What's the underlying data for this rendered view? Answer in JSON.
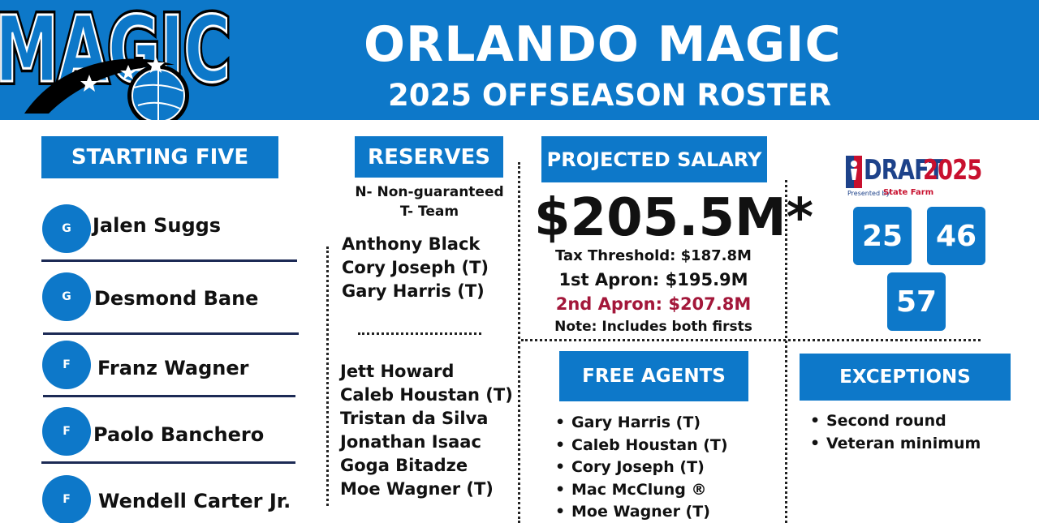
{
  "header": {
    "logo_text": "MAGIC",
    "title": "ORLANDO MAGIC",
    "subtitle": "2025 OFFSEASON ROSTER"
  },
  "starting_five": {
    "heading": "STARTING FIVE",
    "players": [
      {
        "pos": "G",
        "name": "Jalen Suggs"
      },
      {
        "pos": "G",
        "name": "Desmond Bane"
      },
      {
        "pos": "F",
        "name": "Franz Wagner"
      },
      {
        "pos": "F",
        "name": "Paolo Banchero"
      },
      {
        "pos": "F",
        "name": "Wendell Carter Jr."
      }
    ]
  },
  "reserves": {
    "heading": "RESERVES",
    "legend_line1": "N- Non-guaranteed",
    "legend_line2": "T- Team",
    "group1": [
      "Anthony Black",
      "Cory Joseph (T)",
      "Gary Harris (T)"
    ],
    "group2": [
      "Jett Howard",
      "Caleb Houstan (T)",
      "Tristan da Silva",
      "Jonathan Isaac",
      "Goga Bitadze",
      "Moe Wagner (T)"
    ]
  },
  "salary": {
    "heading": "PROJECTED SALARY",
    "amount": "$205.5M*",
    "tax_threshold": "Tax Threshold: $187.8M",
    "first_apron": "1st Apron: $195.9M",
    "second_apron": "2nd Apron: $207.8M",
    "note": "Note: Includes both firsts",
    "second_apron_color": "#a3173a"
  },
  "draft": {
    "logo_draft": "DRAFT",
    "logo_year": "2025",
    "presented_by": "Presented by",
    "sponsor": "State Farm",
    "picks": [
      "25",
      "46",
      "57"
    ]
  },
  "free_agents": {
    "heading": "FREE AGENTS",
    "items": [
      "Gary Harris (T)",
      "Caleb Houstan (T)",
      "Cory Joseph (T)",
      "Mac McClung ®",
      "Moe Wagner (T)"
    ]
  },
  "exceptions": {
    "heading": "EXCEPTIONS",
    "items": [
      "Second round",
      "Veteran minimum"
    ]
  },
  "colors": {
    "brand_blue": "#0d78c9",
    "navy": "#1c2a55",
    "red": "#c8102e"
  }
}
